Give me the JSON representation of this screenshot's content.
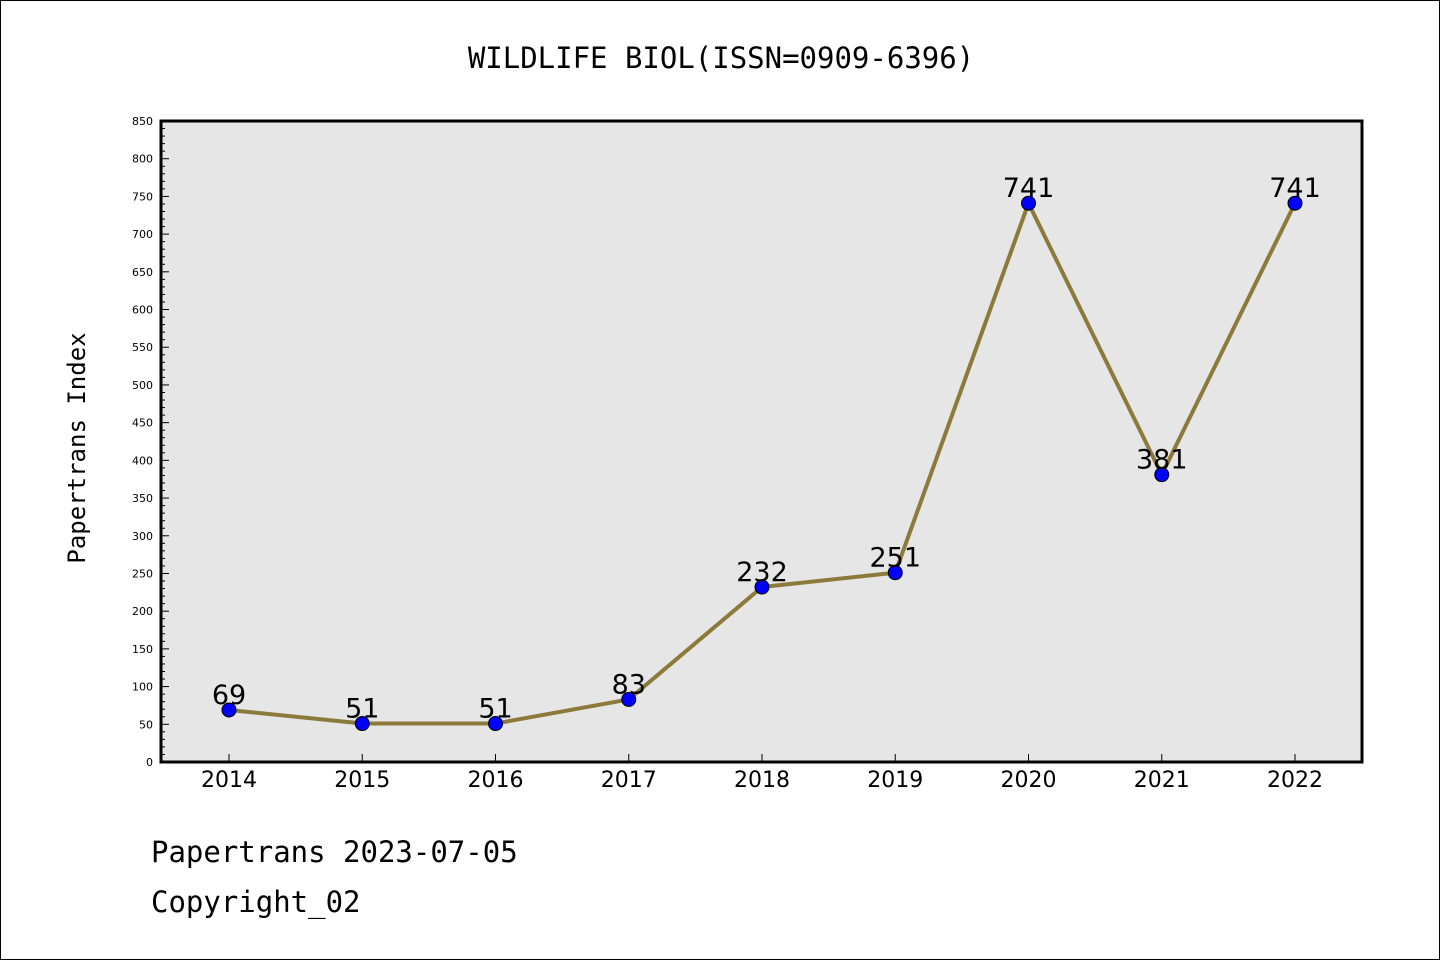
{
  "chart_data": {
    "type": "line",
    "title": "WILDLIFE BIOL(ISSN=0909-6396)",
    "xlabel": "",
    "ylabel": "Papertrans Index",
    "categories": [
      "2014",
      "2015",
      "2016",
      "2017",
      "2018",
      "2019",
      "2020",
      "2021",
      "2022"
    ],
    "values": [
      69,
      51,
      51,
      83,
      232,
      251,
      741,
      381,
      741
    ],
    "ylim": [
      0,
      850
    ],
    "ymajor_step": 50,
    "yminor_step": 10,
    "yticks": [
      "0",
      "50",
      "100",
      "150",
      "200",
      "250",
      "300",
      "350",
      "400",
      "450",
      "500",
      "550",
      "600",
      "650",
      "700",
      "750",
      "800",
      "850"
    ],
    "data_labels": [
      "69",
      "51",
      "51",
      "83",
      "232",
      "251",
      "741",
      "381",
      "741"
    ],
    "grid": false,
    "legend": "none",
    "colors": {
      "line": "#8b7a3a",
      "marker": "#0000ff",
      "marker_edge": "#000000",
      "plot_background": "#e6e6e6"
    }
  },
  "footer": {
    "date_text": "Papertrans 2023-07-05",
    "copyright_text": "Copyright_02"
  }
}
